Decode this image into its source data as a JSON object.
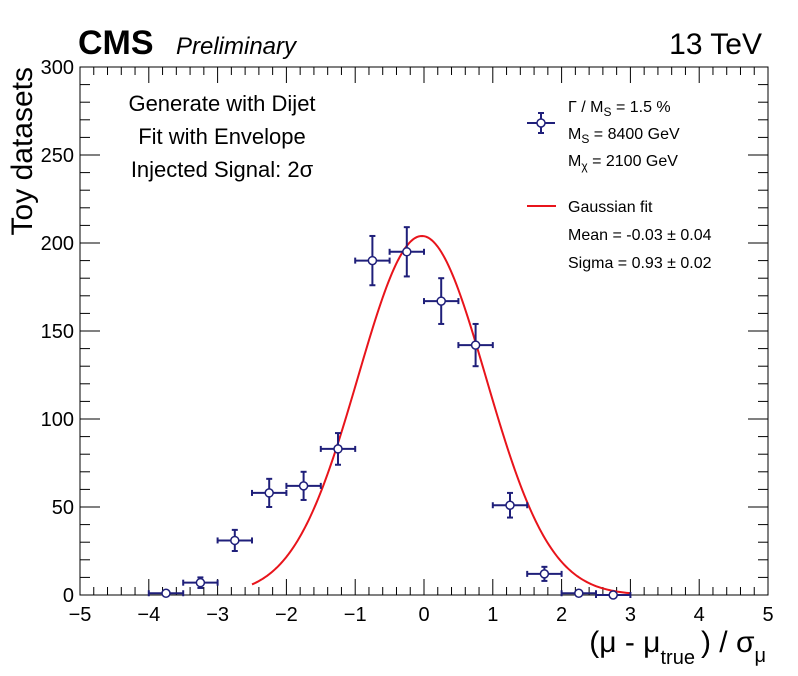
{
  "header": {
    "experiment": "CMS",
    "status": "Preliminary",
    "energy": "13 TeV"
  },
  "annotations": {
    "lines": [
      "Generate with Dijet",
      "Fit with Envelope",
      "Injected Signal: 2σ"
    ]
  },
  "legend": {
    "position": "top-right",
    "data_entry": {
      "gamma": "Γ / M",
      "gamma_sub": "S",
      "gamma_value": " = 1.5 %",
      "ms": "M",
      "ms_sub": "S",
      "ms_value": " = 8400 GeV",
      "mchi": "M",
      "mchi_sub": "χ",
      "mchi_value": " = 2100 GeV"
    },
    "fit_entry": {
      "label": "Gaussian fit",
      "mean": "Mean = -0.03 ± 0.04",
      "sigma": "Sigma = 0.93 ± 0.02"
    }
  },
  "axes": {
    "x": {
      "label_main": "(μ - μ",
      "label_sub": "true",
      "label_tail": ") / σ",
      "label_tail_sub": "μ",
      "ticks": [
        -5,
        -4,
        -3,
        -2,
        -1,
        0,
        1,
        2,
        3,
        4,
        5
      ],
      "tick_labels": [
        "−5",
        "−4",
        "−3",
        "−2",
        "−1",
        "0",
        "1",
        "2",
        "3",
        "4",
        "5"
      ]
    },
    "y": {
      "label": "Toy datasets",
      "ticks": [
        0,
        50,
        100,
        150,
        200,
        250,
        300
      ],
      "tick_labels": [
        "0",
        "50",
        "100",
        "150",
        "200",
        "250",
        "300"
      ]
    }
  },
  "colors": {
    "data": "#1f1f7a",
    "fit": "#e8141b",
    "axis": "#000000"
  },
  "chart_data": {
    "type": "scatter",
    "xlim": [
      -5,
      5
    ],
    "ylim": [
      0,
      300
    ],
    "grid": false,
    "bin_half_width": 0.25,
    "series": [
      {
        "kind": "points_with_errors",
        "x": [
          -3.75,
          -3.25,
          -2.75,
          -2.25,
          -1.75,
          -1.25,
          -0.75,
          -0.25,
          0.25,
          0.75,
          1.25,
          1.75,
          2.25,
          2.75
        ],
        "y": [
          1,
          7,
          31,
          58,
          62,
          83,
          190,
          195,
          167,
          142,
          51,
          12,
          1,
          0
        ],
        "yerr": [
          1,
          3,
          6,
          8,
          8,
          9,
          14,
          14,
          13,
          12,
          7,
          4,
          1,
          0
        ]
      },
      {
        "kind": "gaussian_fit",
        "amplitude": 204,
        "mean": -0.03,
        "sigma": 0.93,
        "x_range": [
          -2.5,
          3.0
        ]
      }
    ]
  }
}
